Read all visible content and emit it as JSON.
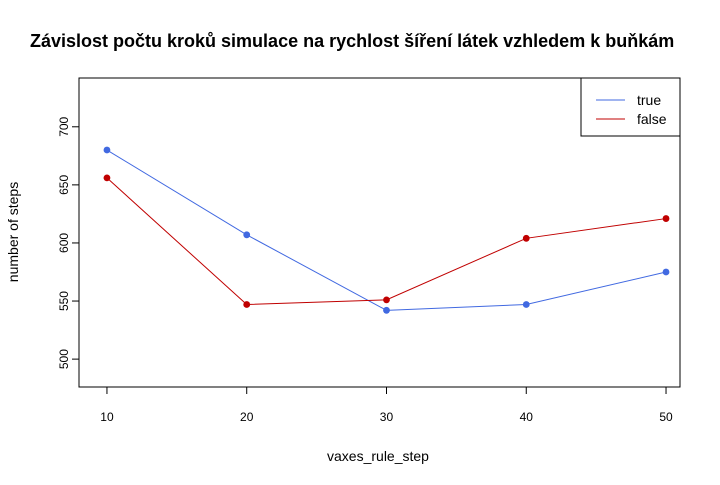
{
  "chart_data": {
    "type": "line",
    "title": "Závislost počtu kroků simulace na rychlost šíření látek vzhledem k buňkám",
    "xlabel": "vaxes_rule_step",
    "ylabel": "number of steps",
    "x": [
      10,
      20,
      30,
      40,
      50
    ],
    "x_ticks": [
      "10",
      "20",
      "30",
      "40",
      "50"
    ],
    "y_ticks": [
      "500",
      "550",
      "600",
      "650",
      "700"
    ],
    "xlim": [
      8,
      51
    ],
    "ylim": [
      476,
      742
    ],
    "grid": false,
    "legend": {
      "position": "top-right",
      "entries": [
        "true",
        "false"
      ]
    },
    "series": [
      {
        "name": "true",
        "color": "#4169E1",
        "values": [
          680,
          607,
          542,
          547,
          575
        ]
      },
      {
        "name": "false",
        "color": "#C00000",
        "values": [
          656,
          547,
          551,
          604,
          621
        ]
      }
    ]
  }
}
